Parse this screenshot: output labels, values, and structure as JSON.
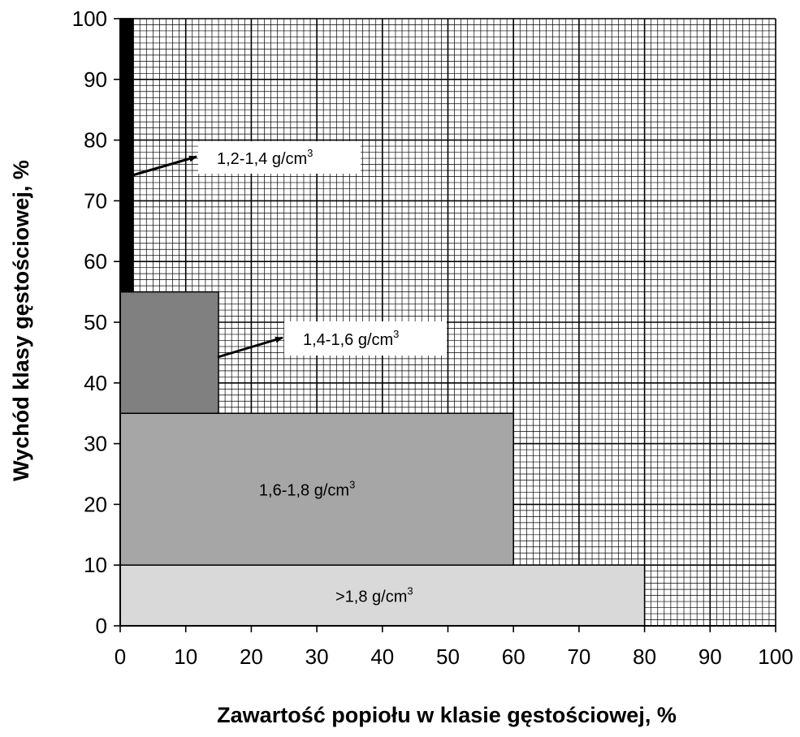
{
  "chart_data": {
    "type": "bar",
    "xlabel": "Zawartość popiołu w klasie gęstościowej, %",
    "ylabel": "Wychód klasy gęstościowej, %",
    "xlim": [
      0,
      100
    ],
    "ylim": [
      0,
      100
    ],
    "x_ticks": [
      "0",
      "10",
      "20",
      "30",
      "40",
      "50",
      "60",
      "70",
      "80",
      "90",
      "100"
    ],
    "y_ticks": [
      "0",
      "10",
      "20",
      "30",
      "40",
      "50",
      "60",
      "70",
      "80",
      "90",
      "100"
    ],
    "grid": "fine mm grid, major every 10",
    "blocks": [
      {
        "label": ">1,8 g/cm",
        "sup": "3",
        "ash": 80,
        "yield_from": 0,
        "yield_to": 10,
        "color": "#d9d9d9"
      },
      {
        "label": "1,6-1,8 g/cm",
        "sup": "3",
        "ash": 60,
        "yield_from": 10,
        "yield_to": 35,
        "color": "#a6a6a6"
      },
      {
        "label": "1,4-1,6 g/cm",
        "sup": "3",
        "ash": 15,
        "yield_from": 35,
        "yield_to": 55,
        "color": "#808080"
      },
      {
        "label": "1,2-1,4 g/cm",
        "sup": "3",
        "ash": 2,
        "yield_from": 55,
        "yield_to": 100,
        "color": "#000000"
      }
    ]
  }
}
